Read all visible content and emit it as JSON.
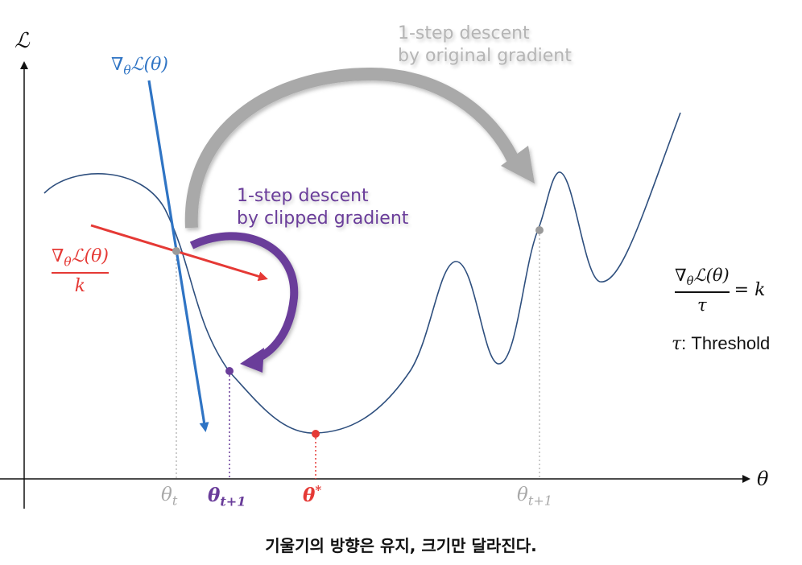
{
  "colors": {
    "blue": "#2f74c4",
    "red": "#e53935",
    "purple": "#6a3d9a",
    "gray": "#a9a9a9",
    "dark_gray": "#9a9a9a",
    "curve": "#2e4f7e",
    "axis": "#111111"
  },
  "axes": {
    "y_label": "ℒ",
    "x_label": "θ"
  },
  "labels": {
    "grad_symbol": "∇",
    "grad_sub": "θ",
    "grad_body": "ℒ(θ)",
    "clipped_den": "k",
    "theta": "θ",
    "t": "t",
    "t_plus_1": "t+1",
    "star": "*"
  },
  "annotations": {
    "original_line1": "1-step descent",
    "original_line2": "by original gradient",
    "clipped_line1": "1-step descent",
    "clipped_line2": "by clipped gradient"
  },
  "formula": {
    "den": "τ",
    "rhs": "= k",
    "threshold_sym": "τ",
    "threshold_text": ": Threshold"
  },
  "caption": "기울기의 방향은 유지, 크기만 달라진다."
}
